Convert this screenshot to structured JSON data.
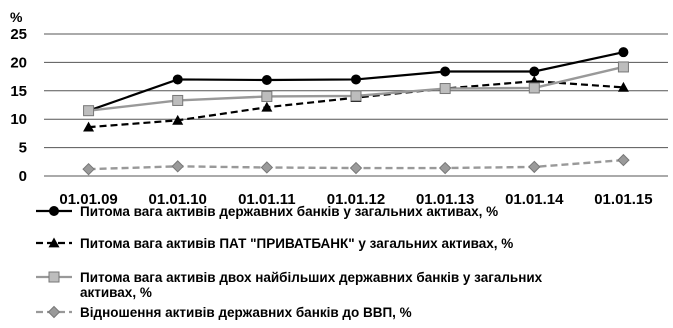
{
  "chart_data": {
    "type": "line",
    "title": "",
    "xlabel": "",
    "ylabel": "%",
    "ylim": [
      0,
      25
    ],
    "yticks": [
      0,
      5,
      10,
      15,
      20,
      25
    ],
    "grid": "horizontal",
    "legend_position": "bottom",
    "categories": [
      "01.01.09",
      "01.01.10",
      "01.01.11",
      "01.01.12",
      "01.01.13",
      "01.01.14",
      "01.01.15"
    ],
    "series": [
      {
        "name": "Питома вага активів державних банків у загальних активах, %",
        "values": [
          11.5,
          17.0,
          16.9,
          17.0,
          18.4,
          18.4,
          21.8
        ],
        "color": "#000000",
        "line": "solid",
        "marker": "circle"
      },
      {
        "name": "Питома вага активів ПАТ \"ПРИВАТБАНК\" у загальних активах, %",
        "values": [
          8.6,
          9.8,
          12.1,
          13.8,
          15.4,
          16.7,
          15.6
        ],
        "color": "#000000",
        "line": "dashed",
        "marker": "triangle"
      },
      {
        "name": "Питома вага активів двох найбільших державних банків у загальних активах, %",
        "values": [
          11.5,
          13.3,
          14.0,
          14.1,
          15.4,
          15.5,
          19.2
        ],
        "color": "#999999",
        "line": "solid",
        "marker": "square"
      },
      {
        "name": "Відношення активів державних банків до ВВП, %",
        "values": [
          1.2,
          1.7,
          1.5,
          1.4,
          1.4,
          1.6,
          2.8
        ],
        "color": "#999999",
        "line": "dashed",
        "marker": "diamond"
      }
    ]
  }
}
